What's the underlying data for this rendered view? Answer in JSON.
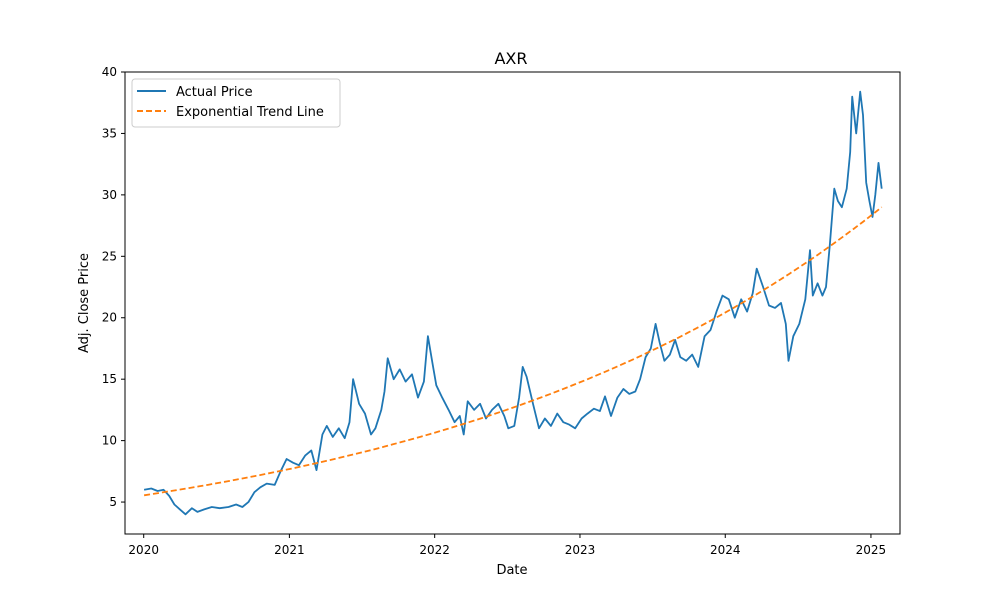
{
  "chart_data": {
    "type": "line",
    "title": "AXR",
    "xlabel": "Date",
    "ylabel": "Adj. Close Price",
    "xlim": [
      "2019-11-15",
      "2025-03-15"
    ],
    "ylim": [
      2.4,
      40
    ],
    "x_ticks": [
      "2020",
      "2021",
      "2022",
      "2023",
      "2024",
      "2025"
    ],
    "y_ticks": [
      5,
      10,
      15,
      20,
      25,
      30,
      35,
      40
    ],
    "grid": false,
    "legend_position": "top-left",
    "colors": {
      "actual": "#1f77b4",
      "trend": "#ff7f0e"
    },
    "series": [
      {
        "name": "Actual Price",
        "style": "solid",
        "points": [
          [
            "2020-01-02",
            6.0
          ],
          [
            "2020-01-20",
            6.1
          ],
          [
            "2020-02-05",
            5.9
          ],
          [
            "2020-02-20",
            6.0
          ],
          [
            "2020-03-05",
            5.5
          ],
          [
            "2020-03-18",
            4.8
          ],
          [
            "2020-04-01",
            4.4
          ],
          [
            "2020-04-15",
            4.0
          ],
          [
            "2020-05-01",
            4.5
          ],
          [
            "2020-05-15",
            4.2
          ],
          [
            "2020-06-01",
            4.4
          ],
          [
            "2020-06-20",
            4.6
          ],
          [
            "2020-07-10",
            4.5
          ],
          [
            "2020-08-01",
            4.6
          ],
          [
            "2020-08-20",
            4.8
          ],
          [
            "2020-09-05",
            4.6
          ],
          [
            "2020-09-20",
            5.0
          ],
          [
            "2020-10-05",
            5.8
          ],
          [
            "2020-10-20",
            6.2
          ],
          [
            "2020-11-05",
            6.5
          ],
          [
            "2020-11-25",
            6.4
          ],
          [
            "2020-12-10",
            7.5
          ],
          [
            "2020-12-25",
            8.5
          ],
          [
            "2021-01-10",
            8.2
          ],
          [
            "2021-01-25",
            8.0
          ],
          [
            "2021-02-10",
            8.8
          ],
          [
            "2021-02-25",
            9.2
          ],
          [
            "2021-03-10",
            7.6
          ],
          [
            "2021-03-25",
            10.5
          ],
          [
            "2021-04-05",
            11.2
          ],
          [
            "2021-04-20",
            10.3
          ],
          [
            "2021-05-05",
            11.0
          ],
          [
            "2021-05-20",
            10.2
          ],
          [
            "2021-06-01",
            11.5
          ],
          [
            "2021-06-10",
            15.0
          ],
          [
            "2021-06-25",
            13.0
          ],
          [
            "2021-07-10",
            12.2
          ],
          [
            "2021-07-25",
            10.5
          ],
          [
            "2021-08-05",
            11.0
          ],
          [
            "2021-08-20",
            12.5
          ],
          [
            "2021-08-28",
            14.0
          ],
          [
            "2021-09-05",
            16.7
          ],
          [
            "2021-09-20",
            15.0
          ],
          [
            "2021-10-05",
            15.8
          ],
          [
            "2021-10-20",
            14.8
          ],
          [
            "2021-11-05",
            15.4
          ],
          [
            "2021-11-20",
            13.5
          ],
          [
            "2021-12-05",
            14.8
          ],
          [
            "2021-12-15",
            18.5
          ],
          [
            "2021-12-28",
            16.0
          ],
          [
            "2022-01-05",
            14.5
          ],
          [
            "2022-01-20",
            13.5
          ],
          [
            "2022-02-05",
            12.5
          ],
          [
            "2022-02-20",
            11.5
          ],
          [
            "2022-03-05",
            12.0
          ],
          [
            "2022-03-15",
            10.5
          ],
          [
            "2022-03-25",
            13.2
          ],
          [
            "2022-04-10",
            12.5
          ],
          [
            "2022-04-25",
            13.0
          ],
          [
            "2022-05-10",
            11.8
          ],
          [
            "2022-05-25",
            12.5
          ],
          [
            "2022-06-10",
            13.0
          ],
          [
            "2022-06-25",
            12.0
          ],
          [
            "2022-07-05",
            11.0
          ],
          [
            "2022-07-20",
            11.2
          ],
          [
            "2022-08-01",
            13.5
          ],
          [
            "2022-08-10",
            16.0
          ],
          [
            "2022-08-20",
            15.2
          ],
          [
            "2022-09-05",
            13.0
          ],
          [
            "2022-09-20",
            11.0
          ],
          [
            "2022-10-05",
            11.8
          ],
          [
            "2022-10-20",
            11.2
          ],
          [
            "2022-11-05",
            12.2
          ],
          [
            "2022-11-20",
            11.5
          ],
          [
            "2022-12-05",
            11.3
          ],
          [
            "2022-12-20",
            11.0
          ],
          [
            "2023-01-05",
            11.8
          ],
          [
            "2023-01-20",
            12.2
          ],
          [
            "2023-02-05",
            12.6
          ],
          [
            "2023-02-20",
            12.4
          ],
          [
            "2023-03-05",
            13.6
          ],
          [
            "2023-03-20",
            12.0
          ],
          [
            "2023-04-05",
            13.5
          ],
          [
            "2023-04-20",
            14.2
          ],
          [
            "2023-05-05",
            13.8
          ],
          [
            "2023-05-20",
            14.0
          ],
          [
            "2023-06-01",
            15.0
          ],
          [
            "2023-06-15",
            16.8
          ],
          [
            "2023-06-28",
            17.5
          ],
          [
            "2023-07-10",
            19.5
          ],
          [
            "2023-07-20",
            18.0
          ],
          [
            "2023-08-01",
            16.5
          ],
          [
            "2023-08-15",
            17.0
          ],
          [
            "2023-08-28",
            18.2
          ],
          [
            "2023-09-10",
            16.8
          ],
          [
            "2023-09-25",
            16.5
          ],
          [
            "2023-10-10",
            17.0
          ],
          [
            "2023-10-25",
            16.0
          ],
          [
            "2023-11-10",
            18.5
          ],
          [
            "2023-11-25",
            19.0
          ],
          [
            "2023-12-10",
            20.5
          ],
          [
            "2023-12-25",
            21.8
          ],
          [
            "2024-01-10",
            21.5
          ],
          [
            "2024-01-25",
            20.0
          ],
          [
            "2024-02-10",
            21.5
          ],
          [
            "2024-02-25",
            20.5
          ],
          [
            "2024-03-10",
            22.0
          ],
          [
            "2024-03-20",
            24.0
          ],
          [
            "2024-04-05",
            22.5
          ],
          [
            "2024-04-20",
            21.0
          ],
          [
            "2024-05-05",
            20.8
          ],
          [
            "2024-05-20",
            21.2
          ],
          [
            "2024-06-01",
            19.5
          ],
          [
            "2024-06-08",
            16.5
          ],
          [
            "2024-06-20",
            18.5
          ],
          [
            "2024-07-05",
            19.5
          ],
          [
            "2024-07-20",
            21.5
          ],
          [
            "2024-08-01",
            25.5
          ],
          [
            "2024-08-08",
            21.8
          ],
          [
            "2024-08-20",
            22.8
          ],
          [
            "2024-09-01",
            21.8
          ],
          [
            "2024-09-10",
            22.5
          ],
          [
            "2024-09-20",
            26.0
          ],
          [
            "2024-10-01",
            30.5
          ],
          [
            "2024-10-10",
            29.5
          ],
          [
            "2024-10-20",
            29.0
          ],
          [
            "2024-11-01",
            30.5
          ],
          [
            "2024-11-10",
            33.5
          ],
          [
            "2024-11-15",
            38.0
          ],
          [
            "2024-11-25",
            35.0
          ],
          [
            "2024-12-05",
            38.4
          ],
          [
            "2024-12-12",
            36.5
          ],
          [
            "2024-12-20",
            31.0
          ],
          [
            "2024-12-28",
            29.5
          ],
          [
            "2025-01-05",
            28.2
          ],
          [
            "2025-01-12",
            30.0
          ],
          [
            "2025-01-20",
            32.6
          ],
          [
            "2025-01-28",
            30.5
          ]
        ]
      },
      {
        "name": "Exponential Trend Line",
        "style": "dashed",
        "type": "exponential",
        "start": [
          "2020-01-02",
          5.55
        ],
        "end": [
          "2025-01-28",
          29.0
        ]
      }
    ]
  }
}
